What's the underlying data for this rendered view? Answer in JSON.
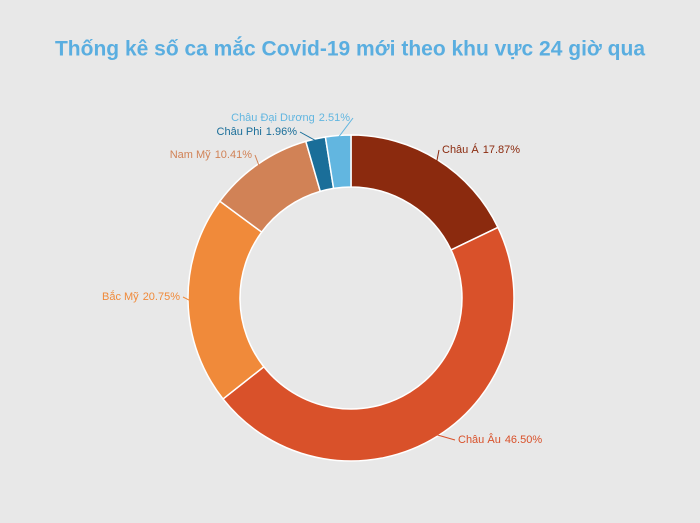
{
  "chart_data": {
    "type": "donut",
    "title": "Thống kê số ca mắc Covid-19 mới theo khu vực 24 giờ qua",
    "categories": [
      "Châu Á",
      "Châu Âu",
      "Bắc Mỹ",
      "Nam Mỹ",
      "Châu Phi",
      "Châu Đại Dương"
    ],
    "values": [
      17.87,
      46.5,
      20.75,
      10.41,
      1.96,
      2.51
    ],
    "value_labels": [
      "17.87%",
      "46.50%",
      "20.75%",
      "10.41%",
      "1.96%",
      "2.51%"
    ],
    "colors": [
      "#8b2a0e",
      "#d9512a",
      "#f08a3a",
      "#d18256",
      "#1a6e99",
      "#62b6e0"
    ]
  }
}
